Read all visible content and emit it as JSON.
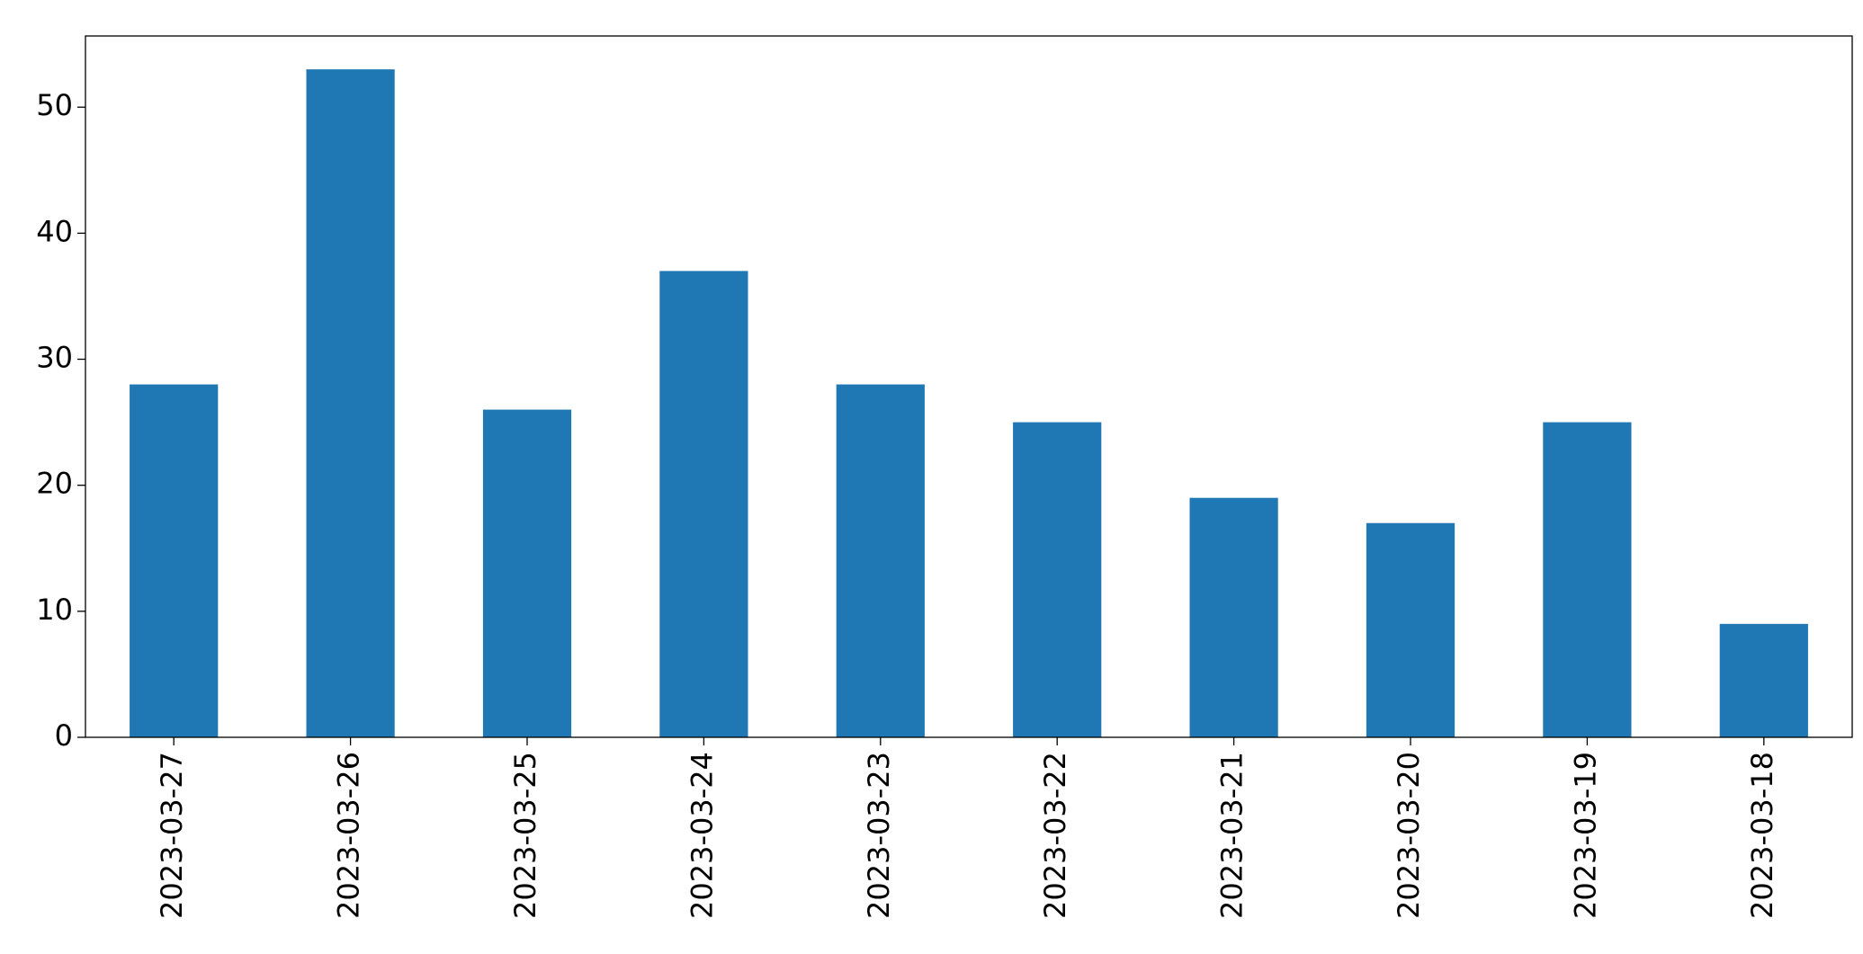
{
  "chart_data": {
    "type": "bar",
    "categories": [
      "2023-03-27",
      "2023-03-26",
      "2023-03-25",
      "2023-03-24",
      "2023-03-23",
      "2023-03-22",
      "2023-03-21",
      "2023-03-20",
      "2023-03-19",
      "2023-03-18"
    ],
    "values": [
      28,
      53,
      26,
      37,
      28,
      25,
      19,
      17,
      25,
      9
    ],
    "color": "#1f77b4",
    "ylim": [
      0,
      55.65
    ],
    "yticks": [
      0,
      10,
      20,
      30,
      40,
      50
    ],
    "grid": false
  }
}
